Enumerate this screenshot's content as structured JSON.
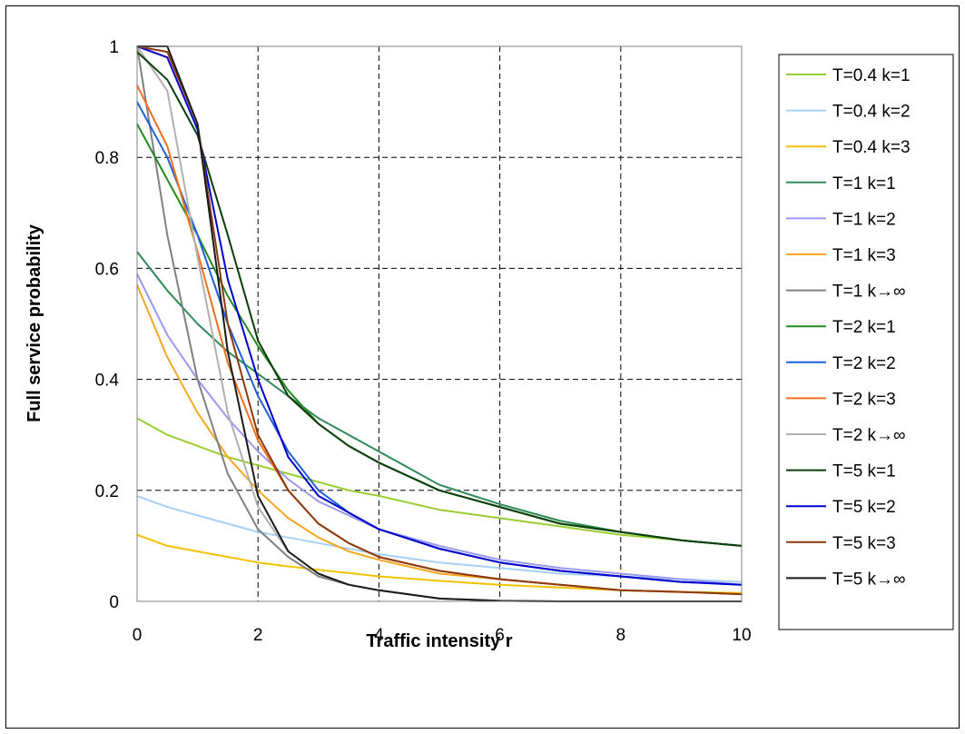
{
  "chart_data": {
    "type": "line",
    "title": "",
    "xlabel": "Traffic intensity r",
    "ylabel": "Full service probability",
    "xlim": [
      0,
      10
    ],
    "ylim": [
      0,
      1
    ],
    "xticks": [
      "0",
      "2",
      "4",
      "6",
      "8",
      "10"
    ],
    "yticks": [
      "0",
      "0.2",
      "0.4",
      "0.6",
      "0.8",
      "1"
    ],
    "grid": true,
    "legend_position": "right",
    "x": [
      0,
      0.5,
      1,
      1.5,
      2,
      2.5,
      3,
      3.5,
      4,
      5,
      6,
      7,
      8,
      9,
      10
    ],
    "series": [
      {
        "name": "T=0.4 k=1",
        "color": "#9acd32",
        "values": [
          0.33,
          0.3,
          0.28,
          0.26,
          0.245,
          0.23,
          0.215,
          0.2,
          0.19,
          0.165,
          0.15,
          0.135,
          0.12,
          0.11,
          0.1
        ]
      },
      {
        "name": "T=0.4 k=2",
        "color": "#a6d0f5",
        "values": [
          0.19,
          0.17,
          0.155,
          0.14,
          0.125,
          0.115,
          0.105,
          0.095,
          0.085,
          0.07,
          0.06,
          0.05,
          0.045,
          0.04,
          0.035
        ]
      },
      {
        "name": "T=0.4 k=3",
        "color": "#f2c200",
        "values": [
          0.12,
          0.1,
          0.09,
          0.08,
          0.07,
          0.063,
          0.057,
          0.051,
          0.045,
          0.037,
          0.03,
          0.025,
          0.02,
          0.017,
          0.015
        ]
      },
      {
        "name": "T=1 k=1",
        "color": "#2e8b57",
        "values": [
          0.63,
          0.56,
          0.5,
          0.45,
          0.41,
          0.37,
          0.33,
          0.3,
          0.27,
          0.21,
          0.175,
          0.145,
          0.125,
          0.11,
          0.1
        ]
      },
      {
        "name": "T=1 k=2",
        "color": "#9999ee",
        "values": [
          0.59,
          0.48,
          0.4,
          0.33,
          0.27,
          0.22,
          0.18,
          0.155,
          0.13,
          0.1,
          0.075,
          0.06,
          0.05,
          0.04,
          0.03
        ]
      },
      {
        "name": "T=1 k=3",
        "color": "#f5a623",
        "values": [
          0.57,
          0.44,
          0.34,
          0.26,
          0.2,
          0.15,
          0.115,
          0.09,
          0.075,
          0.05,
          0.04,
          0.03,
          0.02,
          0.017,
          0.013
        ]
      },
      {
        "name": "T=1 k→∞",
        "color": "#808080",
        "values": [
          1.0,
          0.66,
          0.4,
          0.23,
          0.13,
          0.08,
          0.045,
          0.03,
          0.02,
          0.005,
          0.001,
          0,
          0,
          0,
          0
        ]
      },
      {
        "name": "T=2 k=1",
        "color": "#228b22",
        "values": [
          0.86,
          0.76,
          0.66,
          0.55,
          0.46,
          0.38,
          0.32,
          0.28,
          0.25,
          0.2,
          0.17,
          0.14,
          0.125,
          0.11,
          0.1
        ]
      },
      {
        "name": "T=2 k=2",
        "color": "#1f5fd6",
        "values": [
          0.9,
          0.8,
          0.66,
          0.5,
          0.37,
          0.27,
          0.2,
          0.16,
          0.13,
          0.095,
          0.07,
          0.055,
          0.045,
          0.035,
          0.03
        ]
      },
      {
        "name": "T=2 k=3",
        "color": "#f07020",
        "values": [
          0.93,
          0.82,
          0.63,
          0.43,
          0.29,
          0.2,
          0.14,
          0.105,
          0.08,
          0.055,
          0.04,
          0.03,
          0.02,
          0.017,
          0.013
        ]
      },
      {
        "name": "T=2 k→∞",
        "color": "#b0b0b0",
        "values": [
          1.0,
          0.92,
          0.62,
          0.34,
          0.17,
          0.09,
          0.05,
          0.03,
          0.02,
          0.005,
          0.001,
          0,
          0,
          0,
          0
        ]
      },
      {
        "name": "T=5 k=1",
        "color": "#0b3d0b",
        "values": [
          0.99,
          0.94,
          0.84,
          0.66,
          0.47,
          0.37,
          0.32,
          0.28,
          0.25,
          0.2,
          0.17,
          0.14,
          0.125,
          0.11,
          0.1
        ]
      },
      {
        "name": "T=5 k=2",
        "color": "#0000cc",
        "values": [
          1.0,
          0.98,
          0.85,
          0.58,
          0.4,
          0.26,
          0.19,
          0.16,
          0.13,
          0.095,
          0.07,
          0.055,
          0.045,
          0.035,
          0.03
        ]
      },
      {
        "name": "T=5 k=3",
        "color": "#8b3a0f",
        "values": [
          1.0,
          0.99,
          0.86,
          0.5,
          0.3,
          0.2,
          0.14,
          0.105,
          0.08,
          0.055,
          0.04,
          0.03,
          0.02,
          0.017,
          0.013
        ]
      },
      {
        "name": "T=5 k→∞",
        "color": "#1a1a1a",
        "values": [
          1.0,
          1.0,
          0.86,
          0.45,
          0.19,
          0.09,
          0.05,
          0.03,
          0.02,
          0.005,
          0.001,
          0,
          0,
          0,
          0
        ]
      }
    ]
  }
}
